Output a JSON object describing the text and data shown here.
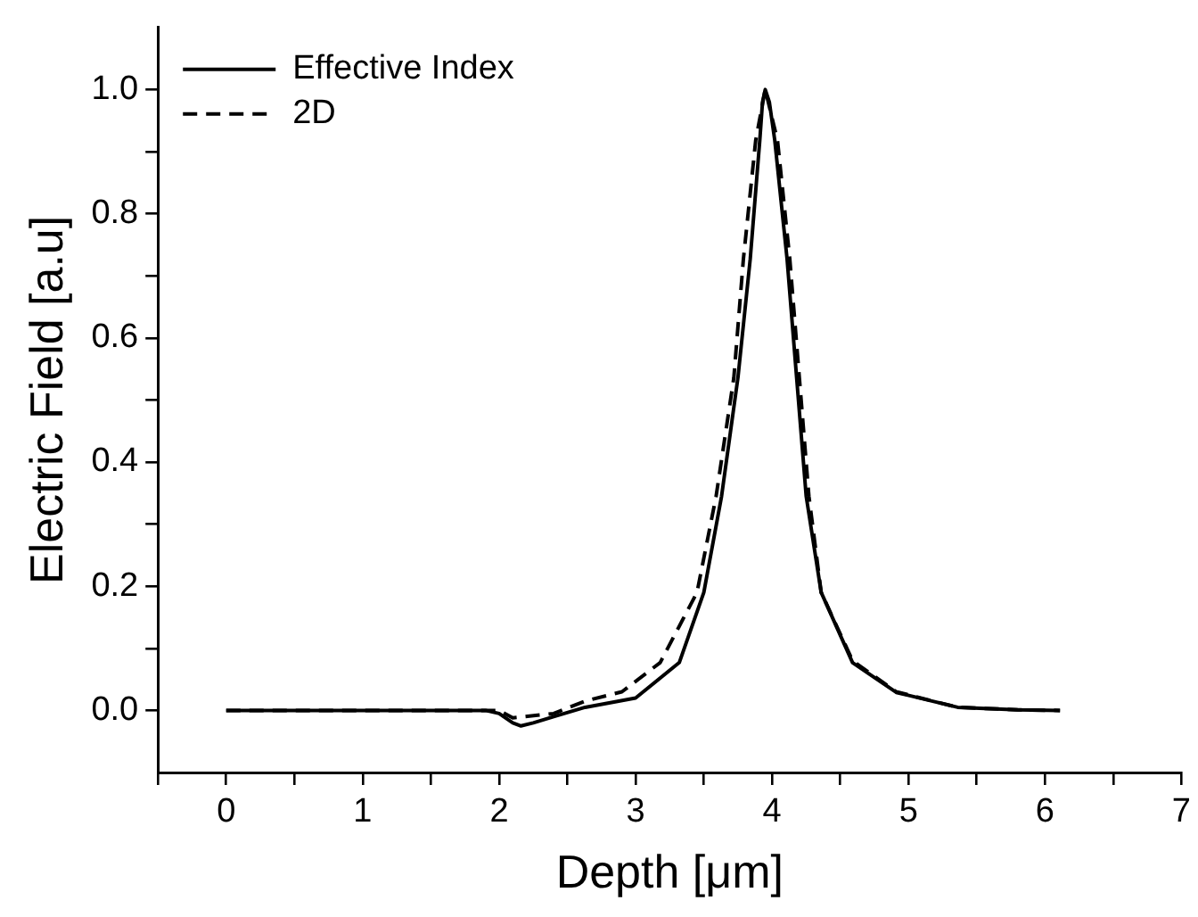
{
  "chart_data": {
    "type": "line",
    "xlabel": "Depth [μm]",
    "ylabel": "Electric Field [a.u]",
    "xlim": [
      -0.5,
      7
    ],
    "ylim": [
      -0.1,
      1.1
    ],
    "xticks": [
      {
        "value": -0.5,
        "label": null
      },
      0,
      {
        "value": 0.5,
        "label": null
      },
      1,
      {
        "value": 1.5,
        "label": null
      },
      2,
      {
        "value": 2.5,
        "label": null
      },
      3,
      {
        "value": 3.5,
        "label": null
      },
      4,
      {
        "value": 4.5,
        "label": null
      },
      5,
      {
        "value": 5.5,
        "label": null
      },
      6,
      {
        "value": 6.5,
        "label": null
      },
      7
    ],
    "yticks": [
      {
        "value": 0,
        "label": "0.0"
      },
      {
        "value": 0.1,
        "label": null
      },
      {
        "value": 0.2,
        "label": "0.2"
      },
      {
        "value": 0.3,
        "label": null
      },
      {
        "value": 0.4,
        "label": "0.4"
      },
      {
        "value": 0.5,
        "label": null
      },
      {
        "value": 0.6,
        "label": "0.6"
      },
      {
        "value": 0.7,
        "label": null
      },
      {
        "value": 0.8,
        "label": "0.8"
      },
      {
        "value": 0.9,
        "label": null
      },
      {
        "value": 1.0,
        "label": "1.0"
      }
    ],
    "grid": false,
    "legend": "top left",
    "marker": "none",
    "series": [
      {
        "name": "Effective Index",
        "color": "#000000",
        "line_style": "solid",
        "x": [
          0,
          0.5,
          1,
          1.5,
          1.9,
          2.0,
          2.1,
          2.16,
          2.25,
          2.4,
          2.63,
          3.0,
          3.32,
          3.5,
          3.63,
          3.75,
          3.84,
          3.91,
          3.93,
          3.95,
          3.98,
          4.02,
          4.11,
          4.18,
          4.25,
          4.36,
          4.59,
          4.91,
          5.36,
          5.8,
          6.11
        ],
        "values": [
          0,
          0,
          0,
          0,
          0,
          -0.005,
          -0.02,
          -0.025,
          -0.02,
          -0.01,
          0.005,
          0.02,
          0.077,
          0.19,
          0.345,
          0.536,
          0.727,
          0.918,
          0.98,
          1.0,
          0.98,
          0.918,
          0.727,
          0.536,
          0.345,
          0.19,
          0.077,
          0.029,
          0.005,
          0.001,
          0
        ]
      },
      {
        "name": "2D",
        "color": "#000000",
        "line_style": "dashed",
        "x": [
          0,
          0.5,
          1,
          1.5,
          2.0,
          2.1,
          2.4,
          2.63,
          2.9,
          3.18,
          3.45,
          3.59,
          3.72,
          3.79,
          3.88,
          3.95,
          4.04,
          4.13,
          4.2,
          4.27,
          4.36,
          4.59,
          4.91,
          5.36,
          5.8,
          6.11
        ],
        "values": [
          0,
          0,
          0,
          0,
          0,
          -0.012,
          -0.005,
          0.015,
          0.03,
          0.077,
          0.19,
          0.345,
          0.536,
          0.727,
          0.918,
          1.0,
          0.918,
          0.727,
          0.536,
          0.345,
          0.19,
          0.08,
          0.03,
          0.005,
          0.001,
          0
        ]
      }
    ]
  }
}
